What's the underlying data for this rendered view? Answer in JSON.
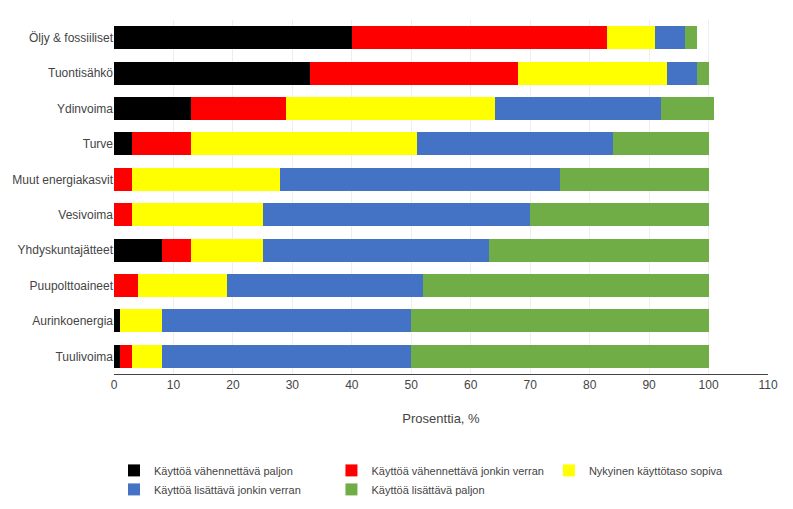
{
  "chart_data": {
    "type": "bar",
    "orientation": "horizontal",
    "stacked": true,
    "categories": [
      "Öljy & fossiiliset",
      "Tuontisähkö",
      "Ydinvoima",
      "Turve",
      "Muut energiakasvit",
      "Vesivoima",
      "Yhdyskuntajätteet",
      "Puupolttoaineet",
      "Aurinkoenergia",
      "Tuulivoima"
    ],
    "series": [
      {
        "name": "Käyttöä vähennettävä paljon",
        "color": "#000000",
        "values": [
          40,
          33,
          13,
          3,
          0,
          0,
          8,
          0,
          1,
          1
        ]
      },
      {
        "name": "Käyttöä vähennettävä jonkin verran",
        "color": "#ff0000",
        "values": [
          43,
          35,
          16,
          10,
          3,
          3,
          5,
          4,
          0,
          2
        ]
      },
      {
        "name": "Nykyinen käyttötaso sopiva",
        "color": "#ffff00",
        "values": [
          8,
          25,
          35,
          38,
          25,
          22,
          12,
          15,
          7,
          5
        ]
      },
      {
        "name": "Käyttöä lisättävä jonkin verran",
        "color": "#4472c4",
        "values": [
          5,
          5,
          28,
          33,
          47,
          45,
          38,
          33,
          42,
          42
        ]
      },
      {
        "name": "Käyttöä lisättävä paljon",
        "color": "#70ad47",
        "values": [
          2,
          2,
          9,
          16,
          25,
          30,
          37,
          48,
          50,
          50
        ]
      }
    ],
    "xlabel": "Prosenttia, %",
    "xlim": [
      0,
      110
    ],
    "xticks": [
      0,
      10,
      20,
      30,
      40,
      50,
      60,
      70,
      80,
      90,
      100,
      110
    ],
    "grid": true,
    "legend": "bottom"
  }
}
